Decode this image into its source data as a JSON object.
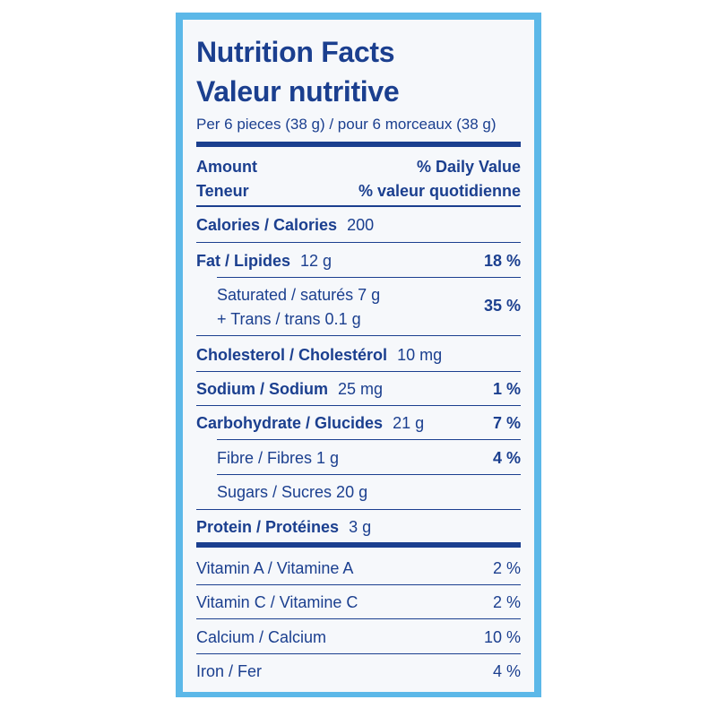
{
  "title_en": "Nutrition Facts",
  "title_fr": "Valeur nutritive",
  "serving": "Per 6 pieces (38 g) / pour 6 morceaux (38 g)",
  "header": {
    "amount": "Amount",
    "teneur": "Teneur",
    "dv_en": "% Daily Value",
    "dv_fr": "% valeur quotidienne"
  },
  "calories": {
    "label": "Calories / Calories",
    "value": "200"
  },
  "fat": {
    "label": "Fat / Lipides",
    "value": "12 g",
    "dv": "18 %"
  },
  "saturated": {
    "label": "Saturated / saturés 7 g",
    "trans": "+ Trans / trans 0.1 g",
    "dv": "35 %"
  },
  "cholesterol": {
    "label": "Cholesterol / Cholestérol",
    "value": "10 mg"
  },
  "sodium": {
    "label": "Sodium / Sodium",
    "value": "25 mg",
    "dv": "1 %"
  },
  "carbohydrate": {
    "label": "Carbohydrate / Glucides",
    "value": "21 g",
    "dv": "7 %"
  },
  "fibre": {
    "label": "Fibre / Fibres 1 g",
    "dv": "4 %"
  },
  "sugars": {
    "label": "Sugars / Sucres 20 g"
  },
  "protein": {
    "label": "Protein / Protéines",
    "value": "3 g"
  },
  "vitamins": [
    {
      "label": "Vitamin A / Vitamine A",
      "dv": "2 %"
    },
    {
      "label": "Vitamin C / Vitamine C",
      "dv": "2 %"
    },
    {
      "label": "Calcium / Calcium",
      "dv": "10 %"
    },
    {
      "label": "Iron / Fer",
      "dv": "4 %"
    }
  ],
  "colors": {
    "text": "#1b3f8f",
    "border": "#5cb8e8",
    "panel": "#f6f8fb"
  }
}
